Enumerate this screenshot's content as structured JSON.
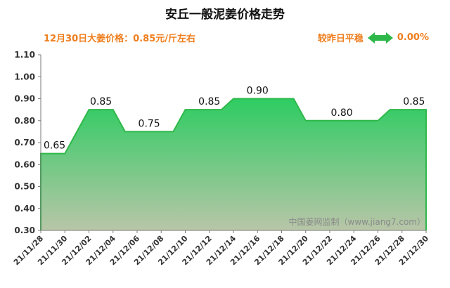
{
  "header": {
    "title": "安丘一般泥姜价格走势",
    "price_text": "12月30日大姜价格：0.85元/斤左右",
    "change_label": "较昨日平稳",
    "change_value": "0.00%",
    "arrow_icon": "double-arrow-icon",
    "accent_color": "#ee7d1c",
    "arrow_color": "#2eb84a"
  },
  "chart_data": {
    "type": "area",
    "title": "安丘一般泥姜价格走势",
    "xlabel": "",
    "ylabel": "",
    "ylim": [
      0.3,
      1.1
    ],
    "y_ticks": [
      "0.30",
      "0.40",
      "0.50",
      "0.60",
      "0.70",
      "0.80",
      "0.90",
      "1.00",
      "1.10"
    ],
    "x_ticks": [
      "21/11/28",
      "21/11/30",
      "21/12/02",
      "21/12/04",
      "21/12/06",
      "21/12/08",
      "21/12/10",
      "21/12/12",
      "21/12/14",
      "21/12/16",
      "21/12/18",
      "21/12/20",
      "21/12/22",
      "21/12/24",
      "21/12/26",
      "21/12/28",
      "21/12/30"
    ],
    "x_range": [
      "2021-11-28",
      "2021-12-30"
    ],
    "points": [
      {
        "x": "2021-11-28",
        "y": 0.65
      },
      {
        "x": "2021-11-30",
        "y": 0.65
      },
      {
        "x": "2021-12-02",
        "y": 0.85
      },
      {
        "x": "2021-12-04",
        "y": 0.85
      },
      {
        "x": "2021-12-05",
        "y": 0.75
      },
      {
        "x": "2021-12-09",
        "y": 0.75
      },
      {
        "x": "2021-12-10",
        "y": 0.85
      },
      {
        "x": "2021-12-13",
        "y": 0.85
      },
      {
        "x": "2021-12-14",
        "y": 0.9
      },
      {
        "x": "2021-12-19",
        "y": 0.9
      },
      {
        "x": "2021-12-20",
        "y": 0.8
      },
      {
        "x": "2021-12-26",
        "y": 0.8
      },
      {
        "x": "2021-12-27",
        "y": 0.85
      },
      {
        "x": "2021-12-30",
        "y": 0.85
      }
    ],
    "data_labels": [
      {
        "x": "2021-11-28",
        "y": 0.65,
        "text": "0.65"
      },
      {
        "x": "2021-12-03",
        "y": 0.85,
        "text": "0.85"
      },
      {
        "x": "2021-12-07",
        "y": 0.75,
        "text": "0.75"
      },
      {
        "x": "2021-12-12",
        "y": 0.85,
        "text": "0.85"
      },
      {
        "x": "2021-12-16",
        "y": 0.9,
        "text": "0.90"
      },
      {
        "x": "2021-12-23",
        "y": 0.8,
        "text": "0.80"
      },
      {
        "x": "2021-12-29",
        "y": 0.85,
        "text": "0.85"
      }
    ],
    "grid": false,
    "line_color": "#2eb84a",
    "fill_top_color": "#2ecc62",
    "fill_bottom_color": "#b8c6a8",
    "watermark": "中国姜网监制（www.jiang7.com）"
  }
}
